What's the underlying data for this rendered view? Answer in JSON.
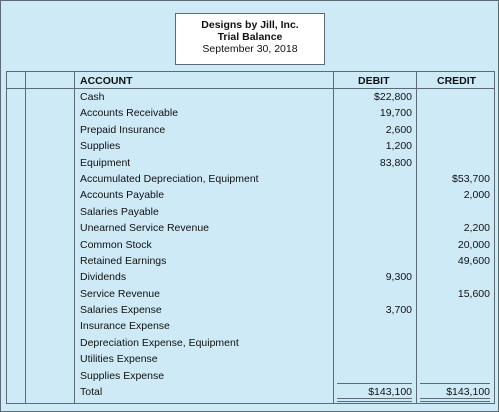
{
  "header": {
    "company": "Designs by Jill, Inc.",
    "title": "Trial Balance",
    "date": "September 30, 2018"
  },
  "columns": {
    "account": "ACCOUNT",
    "debit": "DEBIT",
    "credit": "CREDIT"
  },
  "rows": [
    {
      "account": "Cash",
      "debit": "$22,800",
      "credit": ""
    },
    {
      "account": "Accounts Receivable",
      "debit": "19,700",
      "credit": ""
    },
    {
      "account": "Prepaid Insurance",
      "debit": "2,600",
      "credit": ""
    },
    {
      "account": "Supplies",
      "debit": "1,200",
      "credit": ""
    },
    {
      "account": "Equipment",
      "debit": "83,800",
      "credit": ""
    },
    {
      "account": "Accumulated Depreciation, Equipment",
      "debit": "",
      "credit": "$53,700"
    },
    {
      "account": "Accounts Payable",
      "debit": "",
      "credit": "2,000"
    },
    {
      "account": "Salaries Payable",
      "debit": "",
      "credit": ""
    },
    {
      "account": "Unearned Service Revenue",
      "debit": "",
      "credit": "2,200"
    },
    {
      "account": "Common Stock",
      "debit": "",
      "credit": "20,000"
    },
    {
      "account": "Retained Earnings",
      "debit": "",
      "credit": "49,600"
    },
    {
      "account": "Dividends",
      "debit": "9,300",
      "credit": ""
    },
    {
      "account": "Service Revenue",
      "debit": "",
      "credit": "15,600"
    },
    {
      "account": "Salaries Expense",
      "debit": "3,700",
      "credit": ""
    },
    {
      "account": "Insurance Expense",
      "debit": "",
      "credit": ""
    },
    {
      "account": "Depreciation Expense, Equipment",
      "debit": "",
      "credit": ""
    },
    {
      "account": "Utilities Expense",
      "debit": "",
      "credit": ""
    },
    {
      "account": "Supplies Expense",
      "debit": "",
      "credit": ""
    },
    {
      "account": "Total",
      "debit": "$143,100",
      "credit": "$143,100"
    }
  ]
}
